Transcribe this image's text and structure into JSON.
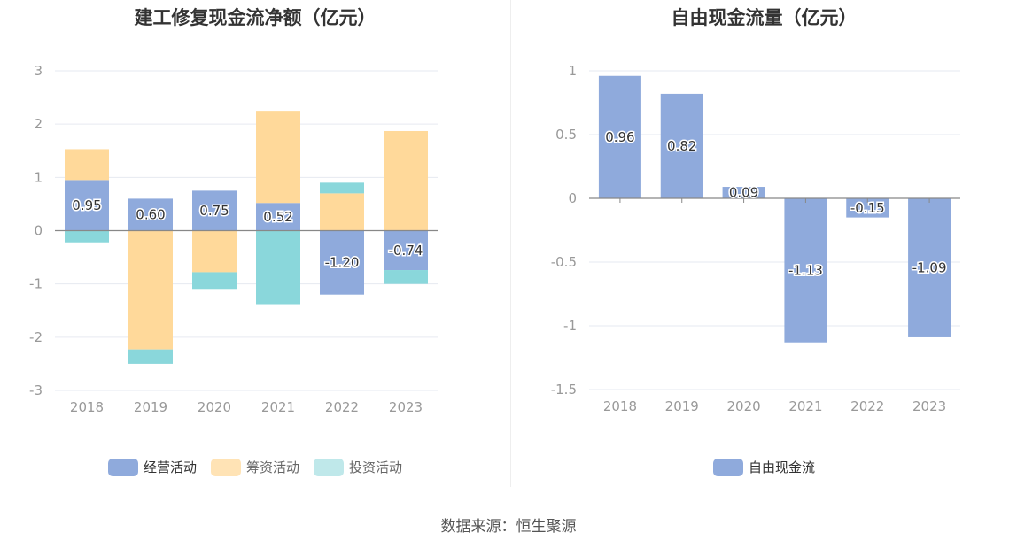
{
  "source_text": "数据来源：恒生聚源",
  "colors": {
    "operating": "#8faadc",
    "financing": "#ffd99a",
    "investing": "#8ad7db",
    "fcf": "#8faadc",
    "grid": "#e6e9f0",
    "axis": "#888888"
  },
  "chart_data": [
    {
      "type": "bar",
      "stacked": true,
      "title": "建工修复现金流净额（亿元）",
      "categories": [
        "2018",
        "2019",
        "2020",
        "2021",
        "2022",
        "2023"
      ],
      "ylim": [
        -3,
        3
      ],
      "yticks": [
        3,
        2,
        1,
        0,
        -1,
        -2,
        -3
      ],
      "series": [
        {
          "name": "经营活动",
          "color": "#8faadc",
          "values": [
            0.95,
            0.6,
            0.75,
            0.52,
            -1.2,
            -0.74
          ],
          "labels": [
            "0.95",
            "0.60",
            "0.75",
            "0.52",
            "-1.20",
            "-0.74"
          ]
        },
        {
          "name": "筹资活动",
          "color": "#ffd99a",
          "values": [
            0.58,
            -2.23,
            -0.78,
            1.73,
            0.7,
            1.87
          ]
        },
        {
          "name": "投资活动",
          "color": "#8ad7db",
          "values": [
            -0.22,
            -0.27,
            -0.33,
            -1.38,
            0.2,
            -0.26
          ]
        }
      ],
      "legend": [
        "经营活动",
        "筹资活动",
        "投资活动"
      ]
    },
    {
      "type": "bar",
      "title": "自由现金流量（亿元）",
      "categories": [
        "2018",
        "2019",
        "2020",
        "2021",
        "2022",
        "2023"
      ],
      "ylim": [
        -1.5,
        1
      ],
      "yticks": [
        1,
        0.5,
        0,
        -0.5,
        -1,
        -1.5
      ],
      "series": [
        {
          "name": "自由现金流",
          "color": "#8faadc",
          "values": [
            0.96,
            0.82,
            0.09,
            -1.13,
            -0.15,
            -1.09
          ],
          "labels": [
            "0.96",
            "0.82",
            "0.09",
            "-1.13",
            "-0.15",
            "-1.09"
          ]
        }
      ],
      "legend": [
        "自由现金流"
      ]
    }
  ]
}
